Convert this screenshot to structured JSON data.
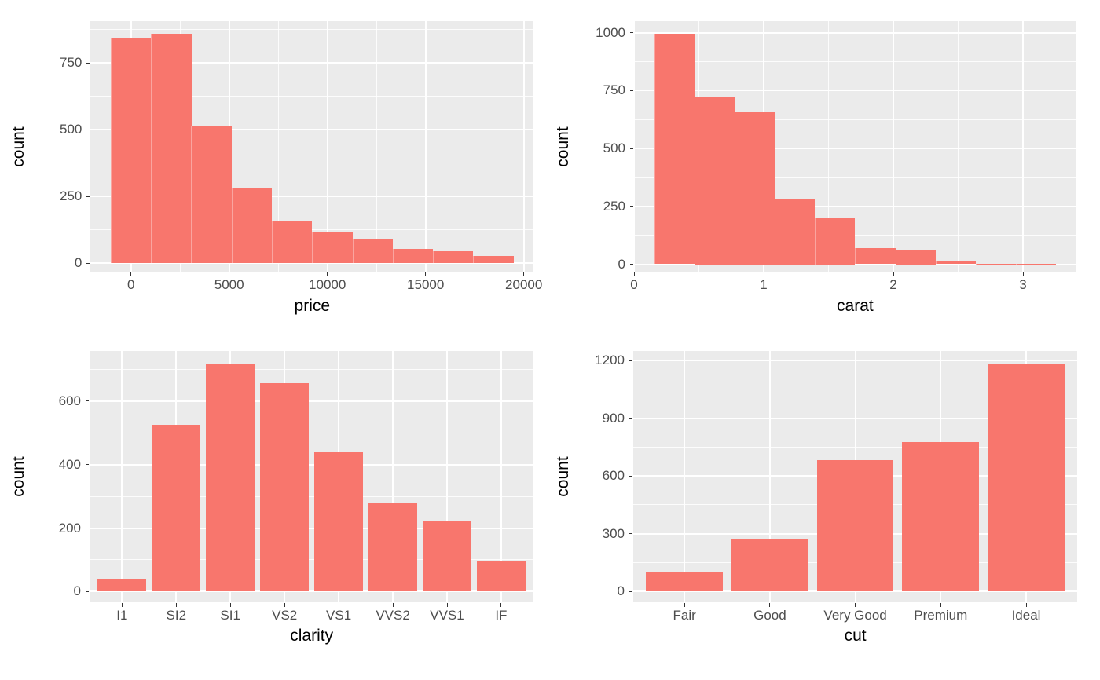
{
  "figure": {
    "description": "2x2 grid of ggplot2-style distribution charts of a diamonds sample",
    "background": "#FFFFFF",
    "panel_background": "#EBEBEB",
    "grid_color": "#FFFFFF",
    "bar_fill": "#F8766D",
    "tick_label_color": "#4D4D4D",
    "axis_title_color": "#000000",
    "tick_mark_color": "#333333"
  },
  "chart_data": [
    {
      "id": "price-histogram",
      "type": "histogram",
      "xlabel": "price",
      "ylabel": "count",
      "bin_edges": [
        -1025,
        1025,
        3075,
        5125,
        7175,
        9225,
        11275,
        13325,
        15375,
        17425,
        19475
      ],
      "counts": [
        841,
        858,
        515,
        284,
        157,
        118,
        88,
        54,
        46,
        27
      ],
      "x_ticks": {
        "values": [
          0,
          5000,
          10000,
          15000,
          20000
        ],
        "labels": [
          "0",
          "5000",
          "10000",
          "15000",
          "20000"
        ]
      },
      "x_minor": [
        2500,
        7500,
        12500,
        17500
      ],
      "y_ticks": {
        "values": [
          0,
          250,
          500,
          750
        ],
        "labels": [
          "0",
          "250",
          "500",
          "750"
        ]
      },
      "y_minor": [
        125,
        375,
        625,
        875
      ],
      "xlim": [
        -2050,
        20500
      ],
      "ylim": [
        -32,
        906
      ],
      "grid": true,
      "legend": "none"
    },
    {
      "id": "carat-histogram",
      "type": "histogram",
      "xlabel": "carat",
      "ylabel": "count",
      "bin_edges": [
        0.155,
        0.465,
        0.775,
        1.085,
        1.395,
        1.705,
        2.015,
        2.325,
        2.635,
        2.945,
        3.255
      ],
      "counts": [
        996,
        724,
        657,
        285,
        200,
        70,
        62,
        11,
        2,
        1
      ],
      "x_ticks": {
        "values": [
          0,
          1,
          2,
          3
        ],
        "labels": [
          "0",
          "1",
          "2",
          "3"
        ]
      },
      "x_minor": [
        0.5,
        1.5,
        2.5,
        3.5
      ],
      "y_ticks": {
        "values": [
          0,
          250,
          500,
          750,
          1000
        ],
        "labels": [
          "0",
          "250",
          "500",
          "750",
          "1000"
        ]
      },
      "y_minor": [
        125,
        375,
        625,
        875
      ],
      "xlim": [
        0,
        3.41
      ],
      "ylim": [
        -32,
        1050
      ],
      "grid": true,
      "legend": "none"
    },
    {
      "id": "clarity-bar",
      "type": "bar",
      "xlabel": "clarity",
      "ylabel": "count",
      "categories": [
        "I1",
        "SI2",
        "SI1",
        "VS2",
        "VS1",
        "VVS2",
        "VVS1",
        "IF"
      ],
      "values": [
        40,
        526,
        717,
        656,
        439,
        281,
        223,
        97
      ],
      "y_ticks": {
        "values": [
          0,
          200,
          400,
          600
        ],
        "labels": [
          "0",
          "200",
          "400",
          "600"
        ]
      },
      "y_minor": [
        100,
        300,
        500,
        700
      ],
      "ylim": [
        -34,
        758
      ],
      "grid": true,
      "legend": "none"
    },
    {
      "id": "cut-bar",
      "type": "bar",
      "xlabel": "cut",
      "ylabel": "count",
      "categories": [
        "Fair",
        "Good",
        "Very Good",
        "Premium",
        "Ideal"
      ],
      "values": [
        100,
        276,
        682,
        777,
        1185
      ],
      "y_ticks": {
        "values": [
          0,
          300,
          600,
          900,
          1200
        ],
        "labels": [
          "0",
          "300",
          "600",
          "900",
          "1200"
        ]
      },
      "y_minor": [
        150,
        450,
        750,
        1050
      ],
      "ylim": [
        -56,
        1249
      ],
      "grid": true,
      "legend": "none"
    }
  ]
}
